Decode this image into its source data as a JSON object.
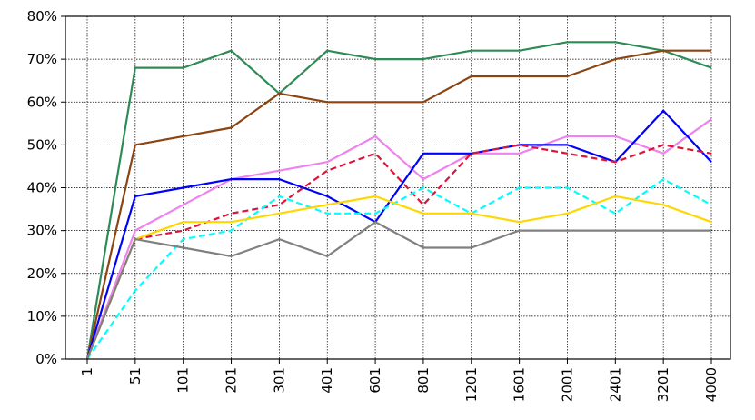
{
  "chart_data": {
    "type": "line",
    "title": "",
    "xlabel": "",
    "ylabel": "",
    "categories": [
      "1",
      "51",
      "101",
      "201",
      "301",
      "401",
      "601",
      "801",
      "1201",
      "1601",
      "2001",
      "2401",
      "3201",
      "4000"
    ],
    "ylim": [
      0,
      80
    ],
    "y_ticks": [
      "0%",
      "10%",
      "20%",
      "30%",
      "40%",
      "50%",
      "60%",
      "70%",
      "80%"
    ],
    "grid": true,
    "legend": "none",
    "series": [
      {
        "color": "#2e8b57",
        "dash": "solid",
        "values": [
          0,
          68,
          68,
          72,
          62,
          72,
          70,
          70,
          72,
          72,
          74,
          74,
          72,
          68
        ]
      },
      {
        "color": "#8b4513",
        "dash": "solid",
        "values": [
          0,
          50,
          52,
          54,
          62,
          60,
          60,
          60,
          66,
          66,
          66,
          70,
          72,
          72
        ]
      },
      {
        "color": "#ee82ee",
        "dash": "solid",
        "values": [
          0,
          30,
          36,
          42,
          44,
          46,
          52,
          42,
          48,
          48,
          52,
          52,
          48,
          56
        ]
      },
      {
        "color": "#0000ff",
        "dash": "solid",
        "values": [
          0,
          38,
          40,
          42,
          42,
          38,
          32,
          48,
          48,
          50,
          50,
          46,
          58,
          46
        ]
      },
      {
        "color": "#dc143c",
        "dash": "dashed",
        "values": [
          0,
          28,
          30,
          34,
          36,
          44,
          48,
          36,
          48,
          50,
          48,
          46,
          50,
          48
        ]
      },
      {
        "color": "#00ffff",
        "dash": "dashed",
        "values": [
          0,
          16,
          28,
          30,
          38,
          34,
          34,
          40,
          34,
          40,
          40,
          34,
          42,
          36
        ]
      },
      {
        "color": "#ffd700",
        "dash": "solid",
        "values": [
          0,
          28,
          32,
          32,
          34,
          36,
          38,
          34,
          34,
          32,
          34,
          38,
          36,
          32
        ]
      },
      {
        "color": "#808080",
        "dash": "solid",
        "values": [
          0,
          28,
          26,
          24,
          28,
          24,
          32,
          26,
          26,
          30,
          30,
          30,
          30,
          30
        ]
      }
    ]
  }
}
